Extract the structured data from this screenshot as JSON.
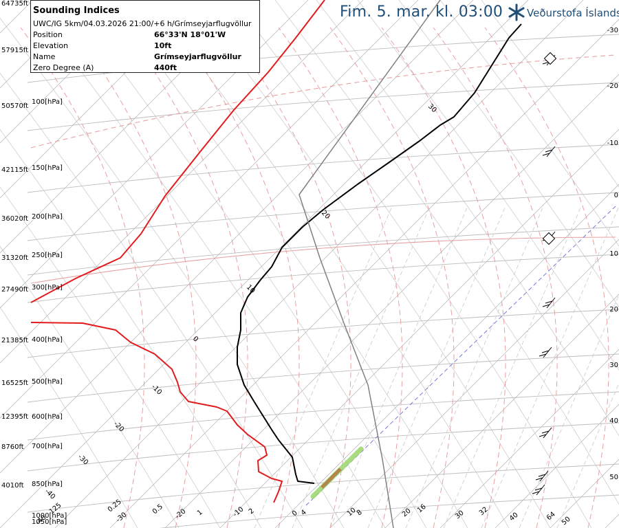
{
  "header": {
    "title": "Fim. 5. mar. kl. 03:00",
    "logo_text": "Veðurstofa Íslands"
  },
  "info": {
    "title": "Sounding Indices",
    "subtitle": "UWC/IG 5km/04.03.2026 21:00/+6 h/Grímseyjarflugvöllur",
    "rows": [
      {
        "label": "Position",
        "value": "66°33'N 18°01'W"
      },
      {
        "label": "Elevation",
        "value": "10ft"
      },
      {
        "label": "Name",
        "value": "Grímseyjarflugvöllur"
      },
      {
        "label": "Zero Degree (A)",
        "value": "440ft"
      }
    ]
  },
  "colors": {
    "temperature": "#e31a1c",
    "dewpoint_or_temp": "#000000",
    "parcel": "#808080",
    "grid": "#bdbdbd",
    "moist_adiabat": "#e8a0a0",
    "mixing_ratio": "#9bd66b",
    "header": "#1f4e79"
  },
  "chart_data": {
    "type": "line",
    "title": "Fim. 5. mar. kl. 03:00",
    "height_labels": [
      "64735ft",
      "57915ft",
      "50570ft",
      "42115ft",
      "36020ft",
      "31320ft",
      "27490ft",
      "21385ft",
      "16525ft",
      "12395ft",
      "8760ft",
      "4010ft"
    ],
    "pressure_labels": [
      "100[hPa]",
      "150[hPa]",
      "200[hPa]",
      "250[hPa]",
      "300[hPa]",
      "400[hPa]",
      "500[hPa]",
      "600[hPa]",
      "700[hPa]",
      "850[hPa]",
      "1000[hPa]",
      "1050[hPa]"
    ],
    "right_labels": [
      "-30",
      "-20",
      "-10",
      "0",
      "10",
      "20",
      "30",
      "40",
      "50"
    ],
    "bottom_labels": [
      "-40",
      "-30",
      "0.25",
      "0.5",
      "-20",
      "1",
      "-10",
      "2",
      "0",
      "4",
      "10",
      "8",
      "20",
      "16",
      "30",
      "32",
      "40",
      "64",
      "50",
      "125"
    ],
    "isotherm_labels": [
      "30",
      "20",
      "10",
      "0",
      "-10",
      "-20",
      "-30",
      "-40"
    ],
    "series": [
      {
        "color_key": "temperature",
        "points": [
          [
            45,
            440
          ],
          [
            110,
            405
          ],
          [
            175,
            375
          ],
          [
            205,
            340
          ],
          [
            240,
            285
          ],
          [
            290,
            222
          ],
          [
            340,
            160
          ],
          [
            390,
            105
          ],
          [
            430,
            55
          ],
          [
            472,
            0
          ]
        ]
      },
      {
        "color_key": "temperature",
        "points": [
          [
            45,
            469
          ],
          [
            120,
            470
          ],
          [
            168,
            480
          ],
          [
            190,
            498
          ],
          [
            225,
            515
          ],
          [
            250,
            537
          ],
          [
            258,
            556
          ],
          [
            262,
            570
          ],
          [
            274,
            584
          ],
          [
            315,
            592
          ],
          [
            330,
            598
          ],
          [
            345,
            618
          ],
          [
            360,
            632
          ],
          [
            385,
            650
          ],
          [
            388,
            662
          ],
          [
            375,
            670
          ],
          [
            376,
            686
          ],
          [
            395,
            696
          ],
          [
            410,
            700
          ],
          [
            405,
            715
          ],
          [
            398,
            731
          ]
        ]
      },
      {
        "color_key": "dewpoint_or_temp",
        "points": [
          [
            758,
            35
          ],
          [
            740,
            55
          ],
          [
            715,
            95
          ],
          [
            690,
            135
          ],
          [
            660,
            170
          ],
          [
            640,
            182
          ],
          [
            610,
            205
          ],
          [
            566,
            236
          ],
          [
            520,
            268
          ],
          [
            470,
            305
          ],
          [
            440,
            330
          ],
          [
            410,
            360
          ],
          [
            395,
            388
          ],
          [
            378,
            408
          ],
          [
            360,
            432
          ],
          [
            350,
            455
          ],
          [
            350,
            480
          ],
          [
            345,
            505
          ],
          [
            345,
            530
          ],
          [
            355,
            560
          ],
          [
            370,
            585
          ],
          [
            395,
            625
          ],
          [
            405,
            640
          ],
          [
            425,
            665
          ],
          [
            430,
            690
          ],
          [
            433,
            700
          ],
          [
            457,
            703
          ]
        ]
      },
      {
        "color_key": "parcel",
        "points": [
          [
            640,
            0
          ],
          [
            435,
            283
          ],
          [
            465,
            375
          ],
          [
            500,
            470
          ],
          [
            535,
            560
          ],
          [
            556,
            668
          ],
          [
            572,
            768
          ]
        ]
      }
    ]
  }
}
